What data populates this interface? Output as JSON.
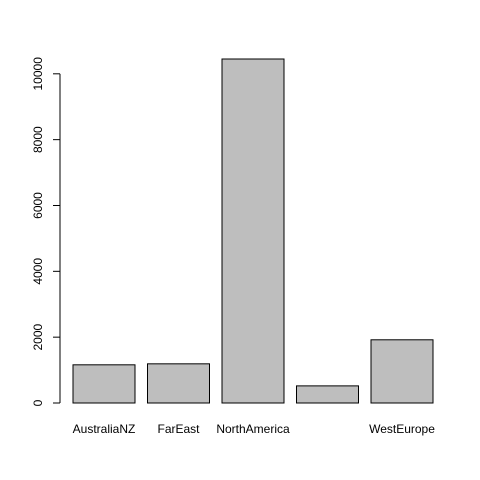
{
  "chart_data": {
    "type": "bar",
    "title": "",
    "xlabel": "",
    "ylabel": "",
    "categories": [
      "AustraliaNZ",
      "FarEast",
      "NorthAmerica",
      "",
      "WestEurope"
    ],
    "values": [
      1160,
      1190,
      10450,
      520,
      1920
    ],
    "ylim": [
      0,
      10450
    ],
    "yticks": [
      0,
      2000,
      4000,
      6000,
      8000,
      10000
    ],
    "ytick_labels": [
      "0",
      "2000",
      "4000",
      "6000",
      "8000",
      "10000"
    ],
    "colors": {
      "bar_fill": "#bebebe",
      "bar_stroke": "#000000",
      "axis": "#000000",
      "background": "#ffffff"
    }
  }
}
